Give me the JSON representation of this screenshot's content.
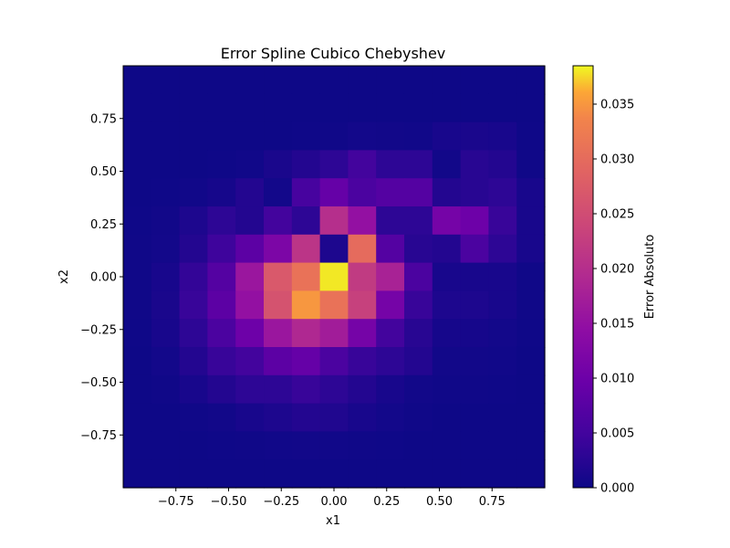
{
  "chart_data": {
    "type": "heatmap",
    "title": "Error Spline Cubico Chebyshev",
    "xlabel": "x1",
    "ylabel": "x2",
    "colorbar_label": "Error Absoluto",
    "colormap": "plasma",
    "xlim": [
      -1,
      1
    ],
    "ylim": [
      -1,
      1
    ],
    "vmin": 0,
    "vmax": 0.0385,
    "xticks": [
      -0.75,
      -0.5,
      -0.25,
      0.0,
      0.25,
      0.5,
      0.75
    ],
    "xtick_labels": [
      "−0.75",
      "−0.50",
      "−0.25",
      "0.00",
      "0.25",
      "0.50",
      "0.75"
    ],
    "yticks": [
      0.75,
      0.5,
      0.25,
      0.0,
      -0.25,
      -0.5,
      -0.75
    ],
    "ytick_labels": [
      "0.75",
      "0.50",
      "0.25",
      "0.00",
      "−0.25",
      "−0.50",
      "−0.75"
    ],
    "cbar_ticks": [
      0.0,
      0.005,
      0.01,
      0.015,
      0.02,
      0.025,
      0.03,
      0.035
    ],
    "cbar_tick_labels": [
      "0.000",
      "0.005",
      "0.010",
      "0.015",
      "0.020",
      "0.025",
      "0.030",
      "0.035"
    ],
    "grid_x_edges": [
      -1.0,
      -0.8667,
      -0.7333,
      -0.6,
      -0.4667,
      -0.3333,
      -0.2,
      -0.0667,
      0.0667,
      0.2,
      0.3333,
      0.4667,
      0.6,
      0.7333,
      0.8667,
      1.0
    ],
    "grid_y_edges_top_down": [
      1.0,
      0.8667,
      0.7333,
      0.6,
      0.4667,
      0.3333,
      0.2,
      0.0667,
      -0.0667,
      -0.2,
      -0.3333,
      -0.4667,
      -0.6,
      -0.7333,
      -0.8667,
      -1.0
    ],
    "z_rows_top_down": [
      [
        0.0001,
        0.0001,
        0.0001,
        0.0001,
        0.0001,
        0.0001,
        0.0001,
        0.0001,
        0.0001,
        0.0001,
        0.0001,
        0.0001,
        0.0001,
        0.0001,
        0.0001
      ],
      [
        0.0001,
        0.0001,
        0.0001,
        0.0001,
        0.0001,
        0.0001,
        0.0001,
        0.0001,
        0.0001,
        0.0001,
        0.0001,
        0.0001,
        0.0001,
        0.0001,
        0.0001
      ],
      [
        0.0001,
        0.0001,
        0.0001,
        0.0001,
        0.0001,
        0.0001,
        0.0002,
        0.0003,
        0.0006,
        0.0005,
        0.0004,
        0.001,
        0.0012,
        0.001,
        0.0002
      ],
      [
        0.0001,
        0.0001,
        0.0001,
        0.0002,
        0.0004,
        0.0012,
        0.002,
        0.003,
        0.005,
        0.003,
        0.003,
        0.0005,
        0.0025,
        0.002,
        0.0003
      ],
      [
        0.0001,
        0.0002,
        0.0004,
        0.0008,
        0.002,
        0.0006,
        0.0055,
        0.009,
        0.006,
        0.007,
        0.007,
        0.002,
        0.0025,
        0.003,
        0.001
      ],
      [
        0.0002,
        0.0005,
        0.0015,
        0.003,
        0.002,
        0.005,
        0.003,
        0.02,
        0.015,
        0.003,
        0.003,
        0.011,
        0.01,
        0.004,
        0.001
      ],
      [
        0.0003,
        0.0006,
        0.002,
        0.0045,
        0.008,
        0.012,
        0.021,
        0.0015,
        0.03,
        0.007,
        0.0025,
        0.002,
        0.006,
        0.003,
        0.001
      ],
      [
        0.0003,
        0.001,
        0.0035,
        0.007,
        0.016,
        0.027,
        0.031,
        0.038,
        0.022,
        0.018,
        0.006,
        0.001,
        0.001,
        0.001,
        0.0003
      ],
      [
        0.0003,
        0.0012,
        0.004,
        0.008,
        0.015,
        0.026,
        0.035,
        0.031,
        0.023,
        0.011,
        0.004,
        0.0015,
        0.0015,
        0.001,
        0.0003
      ],
      [
        0.0002,
        0.001,
        0.003,
        0.006,
        0.01,
        0.016,
        0.019,
        0.017,
        0.011,
        0.005,
        0.0025,
        0.0008,
        0.0008,
        0.0006,
        0.0002
      ],
      [
        0.0001,
        0.0006,
        0.002,
        0.004,
        0.005,
        0.008,
        0.009,
        0.006,
        0.004,
        0.003,
        0.002,
        0.0005,
        0.0005,
        0.0004,
        0.0001
      ],
      [
        0.0001,
        0.0003,
        0.001,
        0.002,
        0.003,
        0.003,
        0.004,
        0.003,
        0.002,
        0.001,
        0.0005,
        0.0003,
        0.0003,
        0.0002,
        0.0001
      ],
      [
        0.0001,
        0.0001,
        0.0003,
        0.0005,
        0.001,
        0.0015,
        0.002,
        0.0018,
        0.001,
        0.0006,
        0.0003,
        0.0001,
        0.0001,
        0.0001,
        0.0001
      ],
      [
        0.0001,
        0.0001,
        0.0001,
        0.0002,
        0.0003,
        0.0004,
        0.0005,
        0.0004,
        0.0003,
        0.0002,
        0.0001,
        0.0001,
        0.0001,
        0.0001,
        0.0001
      ],
      [
        0.0001,
        0.0001,
        0.0001,
        0.0001,
        0.0001,
        0.0001,
        0.0001,
        0.0001,
        0.0001,
        0.0001,
        0.0001,
        0.0001,
        0.0001,
        0.0001,
        0.0001
      ]
    ]
  }
}
